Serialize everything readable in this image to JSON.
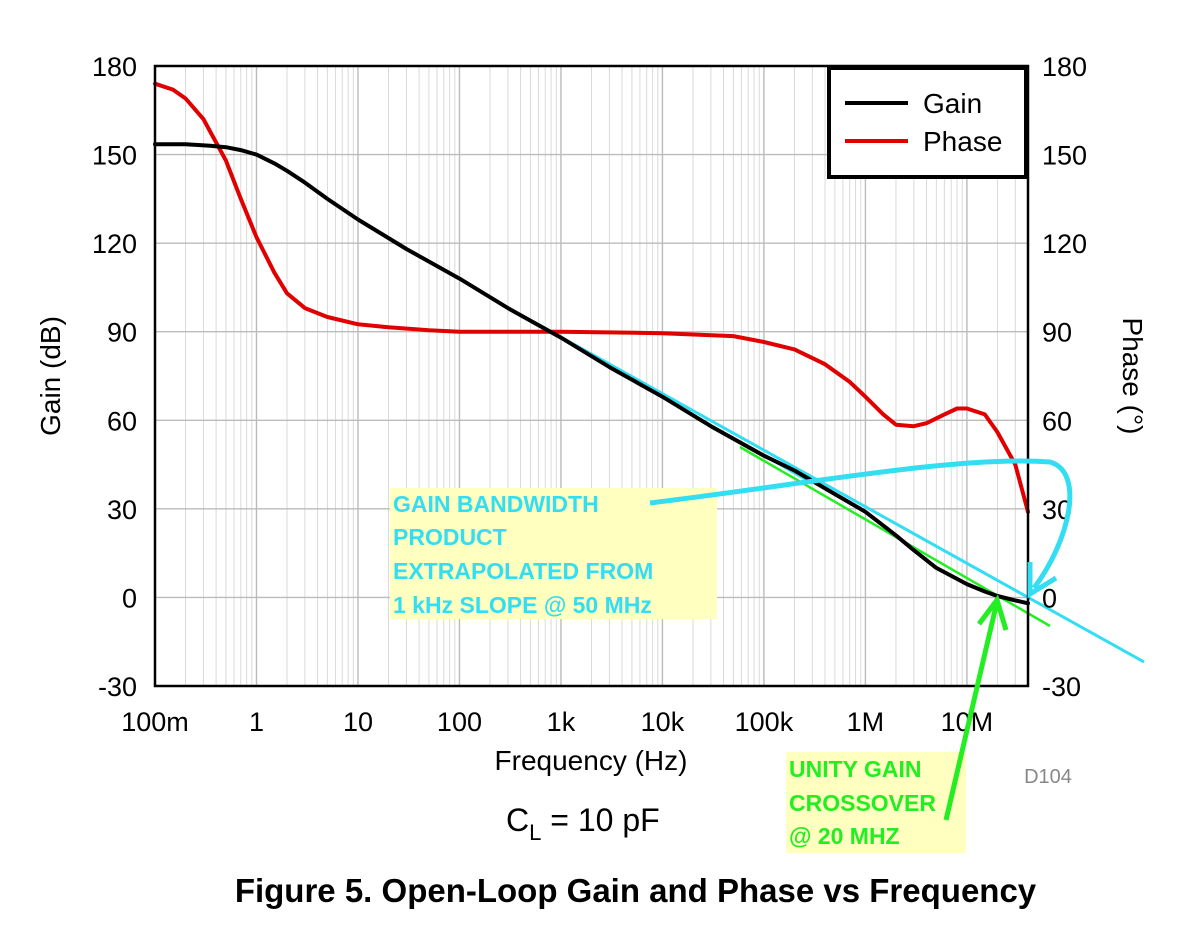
{
  "chart_data": {
    "type": "line",
    "title": "Figure 5. Open-Loop Gain and Phase vs Frequency",
    "condition": {
      "main": "C",
      "sub": "L",
      "rest": " = 10 pF"
    },
    "xlabel": "Frequency (Hz)",
    "ylabel": "Gain (dB)",
    "y2label": "Phase (°)",
    "xscale": "log",
    "xlim": [
      0.1,
      40000000
    ],
    "ylim": [
      -30,
      180
    ],
    "y2lim": [
      -30,
      180
    ],
    "grid": true,
    "legend_position": "top-right",
    "x_ticks": [
      {
        "value": 0.1,
        "label": "100m"
      },
      {
        "value": 1,
        "label": "1"
      },
      {
        "value": 10,
        "label": "10"
      },
      {
        "value": 100,
        "label": "100"
      },
      {
        "value": 1000,
        "label": "1k"
      },
      {
        "value": 10000,
        "label": "10k"
      },
      {
        "value": 100000,
        "label": "100k"
      },
      {
        "value": 1000000,
        "label": "1M"
      },
      {
        "value": 10000000,
        "label": "10M"
      }
    ],
    "y_ticks": [
      {
        "value": 180,
        "label": "180"
      },
      {
        "value": 150,
        "label": "150"
      },
      {
        "value": 120,
        "label": "120"
      },
      {
        "value": 90,
        "label": "90"
      },
      {
        "value": 60,
        "label": "60"
      },
      {
        "value": 30,
        "label": "30"
      },
      {
        "value": 0,
        "label": "0"
      },
      {
        "value": -30,
        "label": "-30"
      }
    ],
    "series": [
      {
        "name": "Gain",
        "color": "#000000",
        "axis": "left",
        "x": [
          0.1,
          0.2,
          0.35,
          0.5,
          0.7,
          1,
          1.5,
          2,
          3,
          5,
          10,
          30,
          100,
          300,
          1000,
          3000,
          10000,
          30000,
          100000,
          200000,
          500000,
          1000000,
          2000000,
          3000000,
          5000000,
          10000000,
          15000000,
          20000000,
          30000000,
          40000000
        ],
        "values": [
          153.5,
          153.5,
          153.0,
          152.5,
          151.5,
          150.0,
          147.0,
          144.5,
          140.5,
          135.0,
          128.0,
          118.0,
          108.0,
          98.0,
          88.0,
          78.0,
          68.0,
          58.0,
          48.0,
          43.0,
          35.0,
          29.0,
          21.0,
          16.0,
          10.0,
          4.5,
          2.0,
          0.5,
          -1.0,
          -2.0
        ]
      },
      {
        "name": "Phase",
        "color": "#e00000",
        "axis": "right",
        "x": [
          0.1,
          0.15,
          0.2,
          0.3,
          0.5,
          0.7,
          1,
          1.5,
          2,
          3,
          5,
          10,
          20,
          50,
          100,
          1000,
          10000,
          50000,
          100000,
          200000,
          400000,
          700000,
          1000000,
          1500000,
          2000000,
          3000000,
          4000000,
          6000000,
          8000000,
          10000000,
          15000000,
          20000000,
          30000000,
          40000000
        ],
        "values": [
          174.0,
          172.0,
          169.0,
          162.0,
          148.0,
          135.0,
          122.0,
          110.0,
          103.0,
          98.0,
          95.0,
          92.5,
          91.5,
          90.5,
          90.0,
          90.0,
          89.5,
          88.5,
          86.5,
          84.0,
          79.0,
          73.0,
          68.0,
          62.0,
          58.5,
          58.0,
          59.0,
          62.0,
          64.0,
          64.0,
          62.0,
          56.0,
          45.0,
          29.0
        ]
      }
    ],
    "annotations": [
      {
        "name": "gain-bandwidth",
        "color": "#33ddf2",
        "lines": [
          "GAIN BANDWIDTH",
          "PRODUCT",
          "EXTRAPOLATED FROM",
          "1 kHz SLOPE  @ 50 MHz"
        ]
      },
      {
        "name": "unity-gain",
        "color": "#22ee22",
        "lines": [
          "UNITY GAIN",
          "CROSSOVER",
          "@ 20 MHZ"
        ]
      }
    ],
    "figure_id": "D104"
  }
}
